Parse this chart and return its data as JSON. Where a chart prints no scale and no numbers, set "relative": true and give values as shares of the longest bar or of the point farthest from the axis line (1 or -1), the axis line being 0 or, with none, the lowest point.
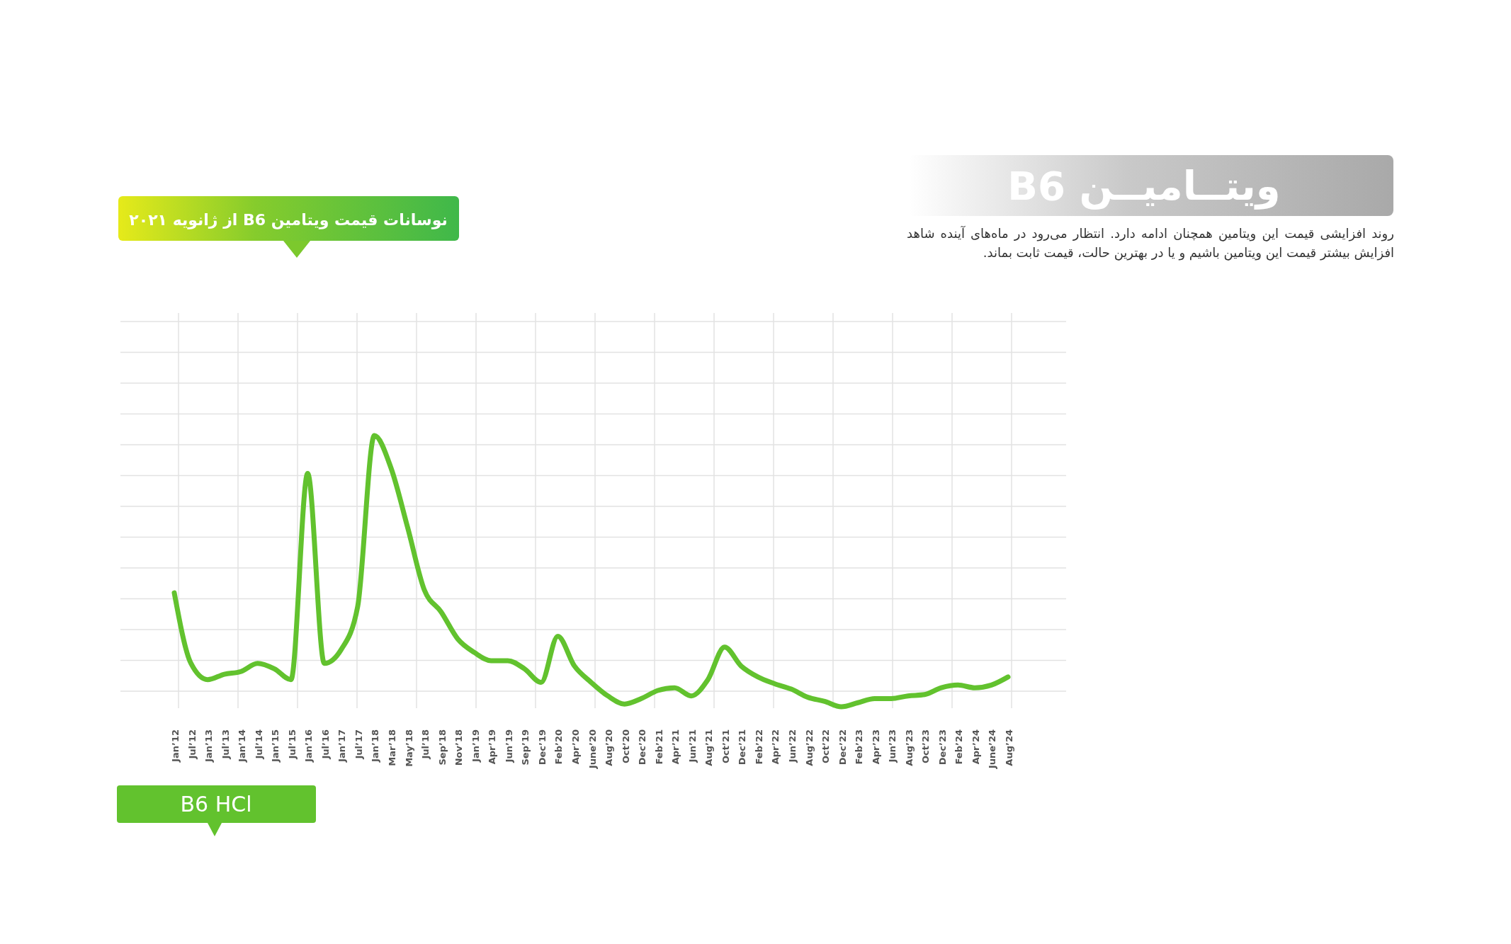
{
  "chart_data": {
    "type": "line",
    "title": "ویتــامیــن B6",
    "subtitle": "نوسانات قیمت ویتامین B6 از ژانویه ۲۰۲۱",
    "annotations": [
      "روند افزایشی قیمت این ویتامین همچنان ادامه دارد. انتظار می‌رود در ماه‌های آینده شاهد افزایش بیشتر قیمت این ویتامین باشیم و یا در بهترین حالت، قیمت ثابت بماند."
    ],
    "categories": [
      "Jan’12",
      "Jul’12",
      "Jan’13",
      "Jul’13",
      "Jan’14",
      "Jul’14",
      "Jan’15",
      "Jul’15",
      "Jan’16",
      "Jul’16",
      "Jan’17",
      "Jul’17",
      "Jan’18",
      "Mar’18",
      "May’18",
      "Jul’18",
      "Sep’18",
      "Nov’18",
      "Jan’19",
      "Apr’19",
      "Jun’19",
      "Sep’19",
      "Dec’19",
      "Feb’20",
      "Apr’20",
      "June’20",
      "Aug’20",
      "Oct’20",
      "Dec’20",
      "Feb’21",
      "Apr’21",
      "Jun’21",
      "Aug’21",
      "Oct’21",
      "Dec’21",
      "Feb’22",
      "Apr’22",
      "Jun’22",
      "Aug’22",
      "Oct’22",
      "Dec’22",
      "Feb’23",
      "Apr’23",
      "Jun’23",
      "Aug’23",
      "Oct’23",
      "Dec’23",
      "Feb’24",
      "Apr’24",
      "June’24",
      "Aug’24"
    ],
    "relative": true,
    "grid": true,
    "legend": "bottom left",
    "series": [
      {
        "name": "B6 HCl",
        "color": "#62c22e",
        "values": [
          0.42,
          0.16,
          0.1,
          0.12,
          0.13,
          0.16,
          0.14,
          0.1,
          0.86,
          0.16,
          0.21,
          0.37,
          1.0,
          0.88,
          0.66,
          0.43,
          0.35,
          0.25,
          0.2,
          0.17,
          0.17,
          0.14,
          0.09,
          0.26,
          0.15,
          0.09,
          0.04,
          0.01,
          0.03,
          0.06,
          0.07,
          0.04,
          0.1,
          0.22,
          0.15,
          0.11,
          0.085,
          0.065,
          0.035,
          0.02,
          0.0,
          0.015,
          0.03,
          0.03,
          0.04,
          0.045,
          0.07,
          0.08,
          0.07,
          0.08,
          0.11
        ]
      }
    ]
  }
}
